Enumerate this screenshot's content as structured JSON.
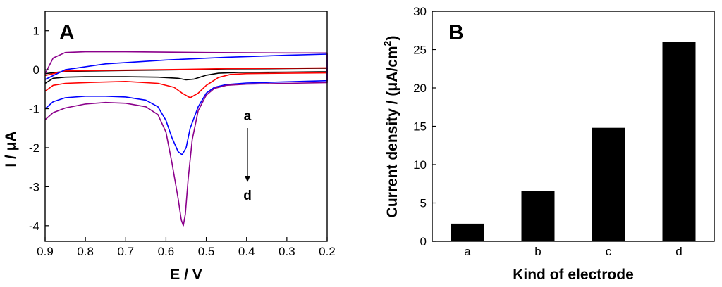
{
  "chart_data": [
    {
      "panel_label": "A",
      "type": "line",
      "xlabel": "E / V",
      "ylabel": "I / μA",
      "xlim": [
        0.9,
        0.2
      ],
      "ylim": [
        -4.4,
        1.5
      ],
      "x_ticks": [
        {
          "v": 0.9,
          "label": "0.9"
        },
        {
          "v": 0.8,
          "label": "0.8"
        },
        {
          "v": 0.7,
          "label": "0.7"
        },
        {
          "v": 0.6,
          "label": "0.6"
        },
        {
          "v": 0.5,
          "label": "0.5"
        },
        {
          "v": 0.4,
          "label": "0.4"
        },
        {
          "v": 0.3,
          "label": "0.3"
        },
        {
          "v": 0.2,
          "label": "0.2"
        }
      ],
      "y_ticks": [
        {
          "v": 1,
          "label": "1"
        },
        {
          "v": 0,
          "label": "0"
        },
        {
          "v": -1,
          "label": "-1"
        },
        {
          "v": -2,
          "label": "-2"
        },
        {
          "v": -3,
          "label": "-3"
        },
        {
          "v": -4,
          "label": "-4"
        }
      ],
      "annotation_start": "a",
      "annotation_end": "d",
      "series": [
        {
          "name": "a",
          "color": "#000000",
          "points": [
            [
              0.9,
              -0.35
            ],
            [
              0.88,
              -0.22
            ],
            [
              0.85,
              -0.19
            ],
            [
              0.8,
              -0.18
            ],
            [
              0.7,
              -0.18
            ],
            [
              0.62,
              -0.19
            ],
            [
              0.57,
              -0.22
            ],
            [
              0.55,
              -0.26
            ],
            [
              0.53,
              -0.24
            ],
            [
              0.5,
              -0.14
            ],
            [
              0.47,
              -0.09
            ],
            [
              0.42,
              -0.07
            ],
            [
              0.3,
              -0.06
            ],
            [
              0.2,
              -0.05
            ],
            [
              0.2,
              0.04
            ],
            [
              0.3,
              0.03
            ],
            [
              0.45,
              0.02
            ],
            [
              0.55,
              0.0
            ],
            [
              0.7,
              -0.02
            ],
            [
              0.85,
              -0.04
            ],
            [
              0.9,
              -0.1
            ]
          ]
        },
        {
          "name": "b",
          "color": "#ff0000",
          "points": [
            [
              0.9,
              -0.55
            ],
            [
              0.88,
              -0.4
            ],
            [
              0.85,
              -0.35
            ],
            [
              0.8,
              -0.33
            ],
            [
              0.7,
              -0.3
            ],
            [
              0.62,
              -0.35
            ],
            [
              0.58,
              -0.45
            ],
            [
              0.56,
              -0.6
            ],
            [
              0.54,
              -0.72
            ],
            [
              0.52,
              -0.6
            ],
            [
              0.5,
              -0.4
            ],
            [
              0.47,
              -0.2
            ],
            [
              0.44,
              -0.12
            ],
            [
              0.4,
              -0.1
            ],
            [
              0.3,
              -0.09
            ],
            [
              0.2,
              -0.08
            ],
            [
              0.2,
              0.05
            ],
            [
              0.3,
              0.04
            ],
            [
              0.45,
              0.03
            ],
            [
              0.55,
              0.01
            ],
            [
              0.7,
              -0.01
            ],
            [
              0.85,
              -0.03
            ],
            [
              0.9,
              -0.15
            ]
          ]
        },
        {
          "name": "c",
          "color": "#0000ff",
          "points": [
            [
              0.9,
              -1.0
            ],
            [
              0.88,
              -0.82
            ],
            [
              0.85,
              -0.72
            ],
            [
              0.8,
              -0.68
            ],
            [
              0.75,
              -0.68
            ],
            [
              0.7,
              -0.7
            ],
            [
              0.65,
              -0.78
            ],
            [
              0.62,
              -0.95
            ],
            [
              0.6,
              -1.3
            ],
            [
              0.585,
              -1.75
            ],
            [
              0.57,
              -2.1
            ],
            [
              0.56,
              -2.18
            ],
            [
              0.55,
              -2.0
            ],
            [
              0.54,
              -1.5
            ],
            [
              0.52,
              -0.95
            ],
            [
              0.5,
              -0.6
            ],
            [
              0.48,
              -0.45
            ],
            [
              0.45,
              -0.38
            ],
            [
              0.4,
              -0.34
            ],
            [
              0.3,
              -0.31
            ],
            [
              0.2,
              -0.28
            ],
            [
              0.2,
              0.4
            ],
            [
              0.3,
              0.37
            ],
            [
              0.45,
              0.32
            ],
            [
              0.6,
              0.25
            ],
            [
              0.75,
              0.15
            ],
            [
              0.85,
              0.0
            ],
            [
              0.9,
              -0.25
            ]
          ]
        },
        {
          "name": "d",
          "color": "#8b008b",
          "points": [
            [
              0.9,
              -1.28
            ],
            [
              0.88,
              -1.1
            ],
            [
              0.85,
              -0.98
            ],
            [
              0.8,
              -0.88
            ],
            [
              0.75,
              -0.84
            ],
            [
              0.7,
              -0.86
            ],
            [
              0.65,
              -0.95
            ],
            [
              0.62,
              -1.15
            ],
            [
              0.6,
              -1.6
            ],
            [
              0.585,
              -2.4
            ],
            [
              0.57,
              -3.3
            ],
            [
              0.562,
              -3.85
            ],
            [
              0.557,
              -4.0
            ],
            [
              0.552,
              -3.7
            ],
            [
              0.545,
              -2.8
            ],
            [
              0.535,
              -1.8
            ],
            [
              0.52,
              -1.05
            ],
            [
              0.5,
              -0.65
            ],
            [
              0.48,
              -0.48
            ],
            [
              0.45,
              -0.4
            ],
            [
              0.4,
              -0.37
            ],
            [
              0.3,
              -0.35
            ],
            [
              0.2,
              -0.33
            ],
            [
              0.2,
              0.43
            ],
            [
              0.3,
              0.43
            ],
            [
              0.5,
              0.44
            ],
            [
              0.7,
              0.46
            ],
            [
              0.8,
              0.46
            ],
            [
              0.85,
              0.44
            ],
            [
              0.88,
              0.3
            ],
            [
              0.9,
              -0.1
            ]
          ]
        }
      ]
    },
    {
      "panel_label": "B",
      "type": "bar",
      "xlabel": "Kind of electrode",
      "ylabel_prefix": "Current density / (μA/cm",
      "ylabel_sup": "2",
      "ylabel_suffix": ")",
      "categories": [
        "a",
        "b",
        "c",
        "d"
      ],
      "values": [
        2.3,
        6.6,
        14.8,
        26.0
      ],
      "ylim": [
        0,
        30
      ],
      "y_ticks": [
        {
          "v": 0,
          "label": "0"
        },
        {
          "v": 5,
          "label": "5"
        },
        {
          "v": 10,
          "label": "10"
        },
        {
          "v": 15,
          "label": "15"
        },
        {
          "v": 20,
          "label": "20"
        },
        {
          "v": 25,
          "label": "25"
        },
        {
          "v": 30,
          "label": "30"
        }
      ],
      "bar_color": "#000000"
    }
  ]
}
